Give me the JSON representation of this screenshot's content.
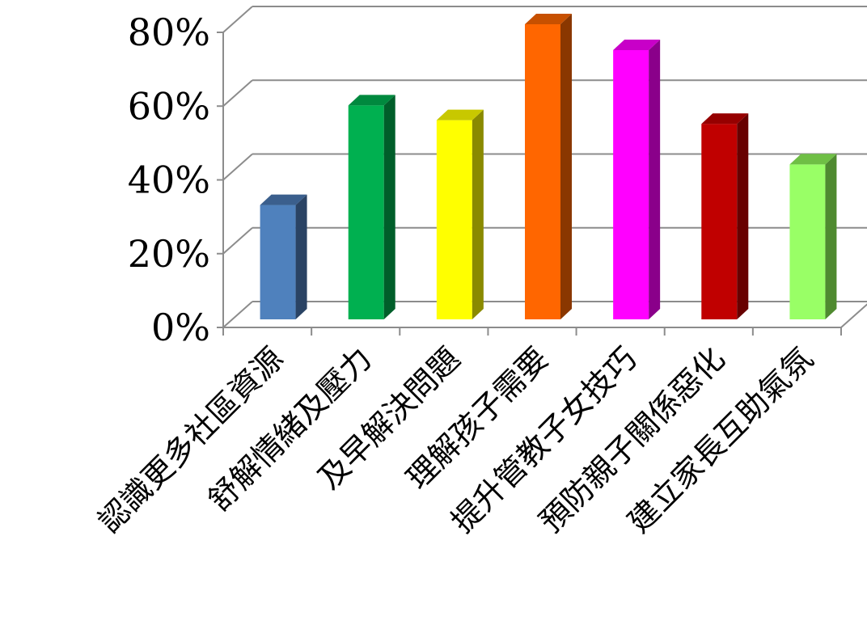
{
  "chart_data": {
    "type": "bar",
    "title": "",
    "xlabel": "",
    "ylabel": "",
    "categories": [
      "認識更多社區資源",
      "舒解情緒及壓力",
      "及早解決問題",
      "理解孩子需要",
      "提升管教子女技巧",
      "預防親子關係惡化",
      "建立家長互助氣氛"
    ],
    "values": [
      31,
      58,
      54,
      80,
      73,
      53,
      42
    ],
    "y_ticks": [
      "0%",
      "20%",
      "40%",
      "60%",
      "80%"
    ],
    "ylim": [
      0,
      80
    ],
    "grid": true,
    "legend": "none",
    "colors": [
      {
        "front": "#4f81bd",
        "side": "#2a4364",
        "top": "#3b5f8d"
      },
      {
        "front": "#00b050",
        "side": "#005e2a",
        "top": "#00893e"
      },
      {
        "front": "#ffff00",
        "side": "#8a8a00",
        "top": "#c8c800"
      },
      {
        "front": "#ff6600",
        "side": "#8a3700",
        "top": "#c75000"
      },
      {
        "front": "#ff00ff",
        "side": "#8a008a",
        "top": "#c800c8"
      },
      {
        "front": "#c00000",
        "side": "#680000",
        "top": "#960000"
      },
      {
        "front": "#99ff66",
        "side": "#4f8a30",
        "top": "#6fbf45"
      }
    ]
  }
}
